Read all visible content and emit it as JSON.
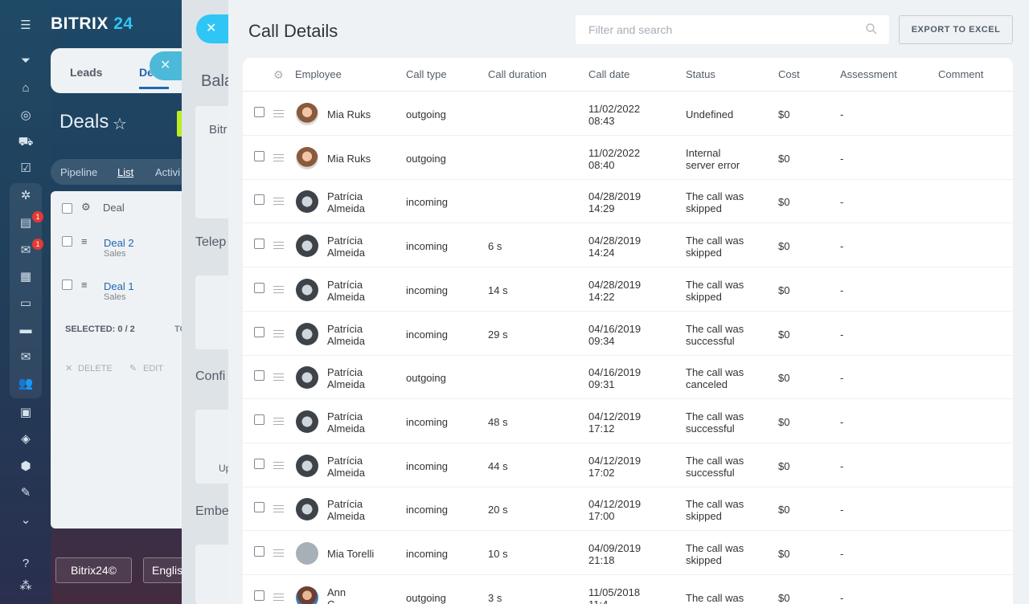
{
  "app": {
    "brand_name": "BITRIX",
    "brand_num": "24"
  },
  "rail": {
    "icons": [
      "menu-icon",
      "filter-icon",
      "building-icon",
      "target-icon",
      "cart-icon",
      "checkbox-icon",
      "crm-icon",
      "feed-icon",
      "chat-icon",
      "calendar-icon",
      "document-icon",
      "drive-icon",
      "mail-icon",
      "group-icon",
      "contact-card-icon",
      "robot-icon",
      "box-icon",
      "sign-icon",
      "more-icon",
      "help-icon",
      "sitemap-icon"
    ],
    "badges": [
      "1",
      "1"
    ]
  },
  "background": {
    "tabs": [
      "Leads",
      "Deals"
    ],
    "page_title": "Deals",
    "subtabs": [
      "Pipeline",
      "List",
      "Activi"
    ],
    "list_header": "Deal",
    "deals": [
      {
        "name": "Deal 2",
        "stage": "Sales"
      },
      {
        "name": "Deal 1",
        "stage": "Sales"
      }
    ],
    "selected_label": "SELECTED: 0 / 2",
    "total_label": "TO",
    "delete_label": "DELETE",
    "edit_label": "EDIT",
    "bottom_buttons": [
      "Bitrix24©",
      "Englis"
    ]
  },
  "middle": {
    "labels": [
      "Bala",
      "Bitr",
      "Telep",
      "Confi",
      "Up",
      "Embe"
    ]
  },
  "main": {
    "title": "Call Details",
    "search_placeholder": "Filter and search",
    "export_label": "EXPORT TO EXCEL",
    "columns": [
      "Employee",
      "Call type",
      "Call duration",
      "Call date",
      "Status",
      "Cost",
      "Assessment",
      "Comment"
    ],
    "rows": [
      {
        "emp1": "Mia Ruks",
        "emp2": "",
        "type": "outgoing",
        "duration": "",
        "date1": "11/02/2022",
        "date2": "08:43",
        "status1": "Undefined",
        "status2": "",
        "cost": "$0",
        "assessment": "-",
        "avatar": "mia"
      },
      {
        "emp1": "Mia Ruks",
        "emp2": "",
        "type": "outgoing",
        "duration": "",
        "date1": "11/02/2022",
        "date2": "08:40",
        "status1": "Internal",
        "status2": "server error",
        "cost": "$0",
        "assessment": "-",
        "avatar": "mia"
      },
      {
        "emp1": "Patrícia",
        "emp2": "Almeida",
        "type": "incoming",
        "duration": "",
        "date1": "04/28/2019",
        "date2": "14:29",
        "status1": "The call was",
        "status2": "skipped",
        "cost": "$0",
        "assessment": "-",
        "avatar": "pat"
      },
      {
        "emp1": "Patrícia",
        "emp2": "Almeida",
        "type": "incoming",
        "duration": "6 s",
        "date1": "04/28/2019",
        "date2": "14:24",
        "status1": "The call was",
        "status2": "skipped",
        "cost": "$0",
        "assessment": "-",
        "avatar": "pat"
      },
      {
        "emp1": "Patrícia",
        "emp2": "Almeida",
        "type": "incoming",
        "duration": "14 s",
        "date1": "04/28/2019",
        "date2": "14:22",
        "status1": "The call was",
        "status2": "skipped",
        "cost": "$0",
        "assessment": "-",
        "avatar": "pat"
      },
      {
        "emp1": "Patrícia",
        "emp2": "Almeida",
        "type": "incoming",
        "duration": "29 s",
        "date1": "04/16/2019",
        "date2": "09:34",
        "status1": "The call was",
        "status2": "successful",
        "cost": "$0",
        "assessment": "-",
        "avatar": "pat"
      },
      {
        "emp1": "Patrícia",
        "emp2": "Almeida",
        "type": "outgoing",
        "duration": "",
        "date1": "04/16/2019",
        "date2": "09:31",
        "status1": "The call was",
        "status2": "canceled",
        "cost": "$0",
        "assessment": "-",
        "avatar": "pat"
      },
      {
        "emp1": "Patrícia",
        "emp2": "Almeida",
        "type": "incoming",
        "duration": "48 s",
        "date1": "04/12/2019",
        "date2": "17:12",
        "status1": "The call was",
        "status2": "successful",
        "cost": "$0",
        "assessment": "-",
        "avatar": "pat"
      },
      {
        "emp1": "Patrícia",
        "emp2": "Almeida",
        "type": "incoming",
        "duration": "44 s",
        "date1": "04/12/2019",
        "date2": "17:02",
        "status1": "The call was",
        "status2": "successful",
        "cost": "$0",
        "assessment": "-",
        "avatar": "pat"
      },
      {
        "emp1": "Patrícia",
        "emp2": "Almeida",
        "type": "incoming",
        "duration": "20 s",
        "date1": "04/12/2019",
        "date2": "17:00",
        "status1": "The call was",
        "status2": "skipped",
        "cost": "$0",
        "assessment": "-",
        "avatar": "pat"
      },
      {
        "emp1": "Mia Torelli",
        "emp2": "",
        "type": "incoming",
        "duration": "10 s",
        "date1": "04/09/2019",
        "date2": "21:18",
        "status1": "The call was",
        "status2": "skipped",
        "cost": "$0",
        "assessment": "-",
        "avatar": "mt"
      },
      {
        "emp1": "Ann",
        "emp2": "C",
        "type": "outgoing",
        "duration": "3 s",
        "date1": "11/05/2018",
        "date2": "11:4",
        "status1": "The call was",
        "status2": "",
        "cost": "$0",
        "assessment": "-",
        "avatar": "ann"
      }
    ]
  }
}
